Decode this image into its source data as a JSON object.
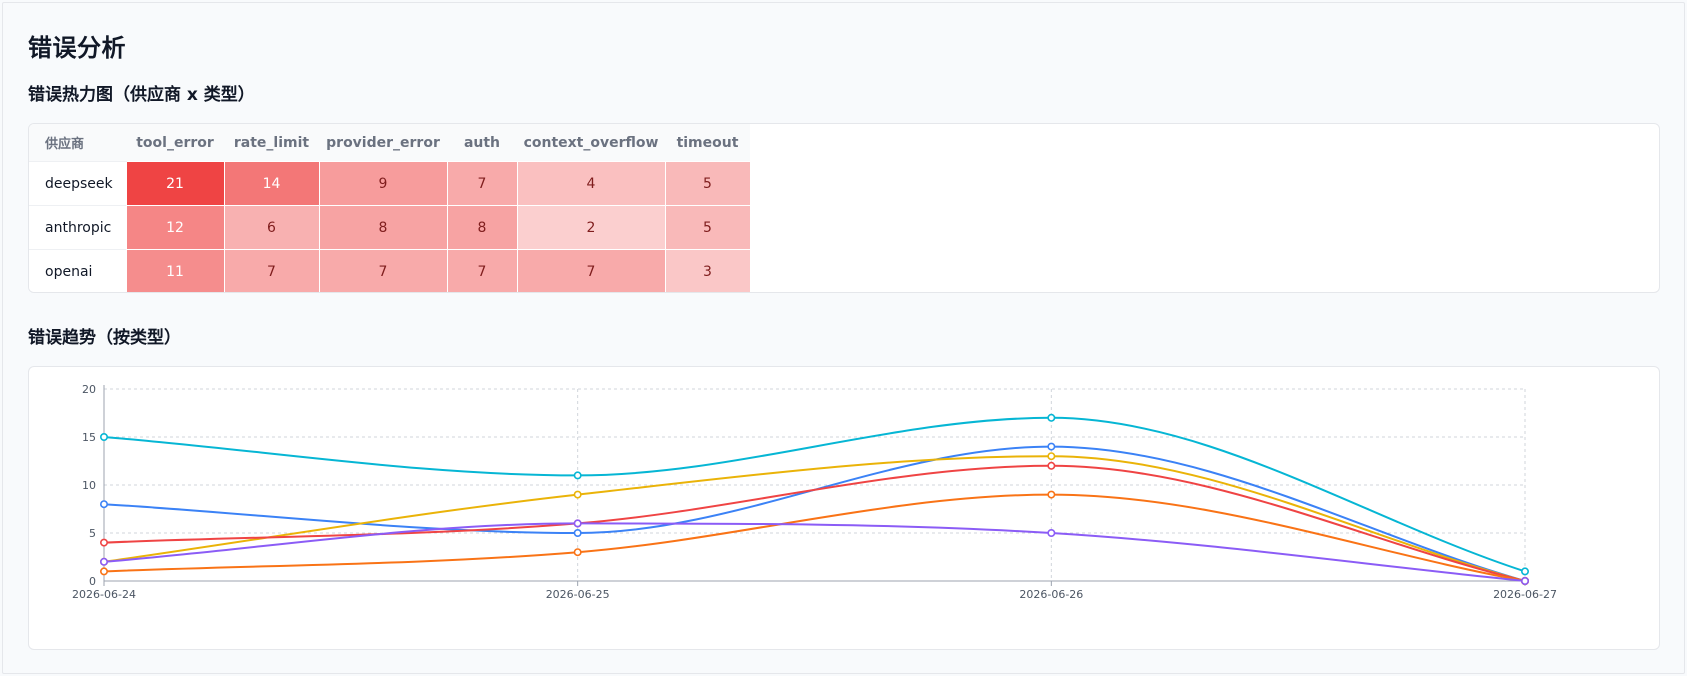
{
  "page": {
    "title": "错误分析",
    "heatmap_title": "错误热力图（供应商 x 类型）",
    "trend_title": "错误趋势（按类型）"
  },
  "heatmap": {
    "provider_header": "供应商",
    "types": [
      "tool_error",
      "rate_limit",
      "provider_error",
      "auth",
      "context_overflow",
      "timeout"
    ],
    "rows": [
      {
        "provider": "deepseek",
        "values": [
          21,
          14,
          9,
          7,
          4,
          5
        ]
      },
      {
        "provider": "anthropic",
        "values": [
          12,
          6,
          8,
          8,
          2,
          5
        ]
      },
      {
        "provider": "openai",
        "values": [
          11,
          7,
          7,
          7,
          7,
          3
        ]
      }
    ],
    "max_value": 21,
    "color": "#ef4444"
  },
  "chart_data": [
    {
      "type": "heatmap",
      "title": "错误热力图（供应商 x 类型）",
      "x": [
        "tool_error",
        "rate_limit",
        "provider_error",
        "auth",
        "context_overflow",
        "timeout"
      ],
      "y": [
        "deepseek",
        "anthropic",
        "openai"
      ],
      "values": [
        [
          21,
          14,
          9,
          7,
          4,
          5
        ],
        [
          12,
          6,
          8,
          8,
          2,
          5
        ],
        [
          11,
          7,
          7,
          7,
          7,
          3
        ]
      ]
    },
    {
      "type": "line",
      "title": "错误趋势（按类型）",
      "x": [
        "2026-06-24",
        "2026-06-25",
        "2026-06-26",
        "2026-06-27"
      ],
      "ylim": [
        0,
        20
      ],
      "yticks": [
        0,
        5,
        10,
        15,
        20
      ],
      "grid": true,
      "smooth": true,
      "series": [
        {
          "color": "#06b6d4",
          "values": [
            15,
            11,
            17,
            1
          ]
        },
        {
          "color": "#3b82f6",
          "values": [
            8,
            5,
            14,
            0
          ]
        },
        {
          "color": "#eab308",
          "values": [
            2,
            9,
            13,
            0
          ]
        },
        {
          "color": "#ef4444",
          "values": [
            4,
            6,
            12,
            0
          ]
        },
        {
          "color": "#f97316",
          "values": [
            1,
            3,
            9,
            0
          ]
        },
        {
          "color": "#8b5cf6",
          "values": [
            2,
            6,
            5,
            0
          ]
        }
      ]
    }
  ]
}
